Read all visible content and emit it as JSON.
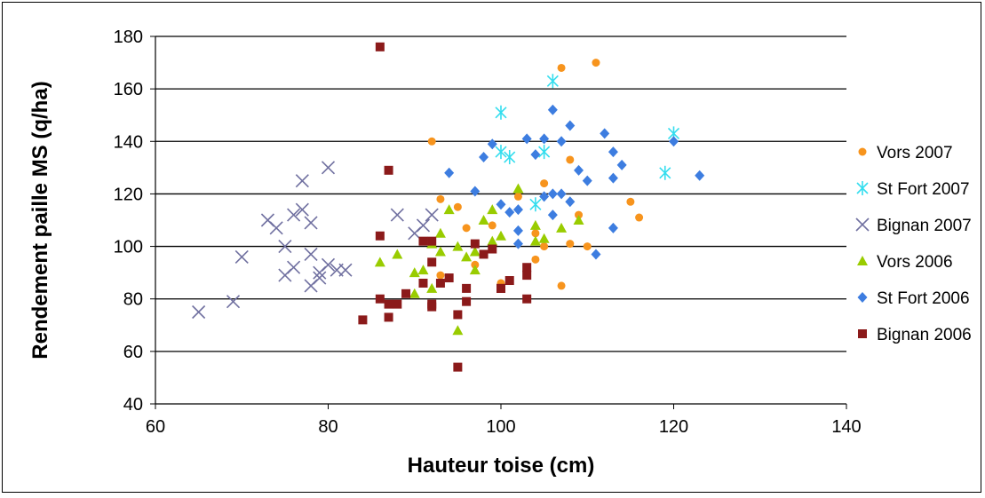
{
  "chart_data": {
    "type": "scatter",
    "title": "",
    "xlabel": "Hauteur toise (cm)",
    "ylabel": "Rendement paille MS (q/ha)",
    "xlim": [
      60,
      140
    ],
    "ylim": [
      40,
      180
    ],
    "xticks": [
      "60",
      "80",
      "100",
      "120",
      "140"
    ],
    "yticks": [
      "40",
      "60",
      "80",
      "100",
      "120",
      "140",
      "160",
      "180"
    ],
    "grid": "horizontal",
    "legend_position": "right",
    "series": [
      {
        "name": "Vors 2007",
        "color": "#f7941d",
        "marker": "circle",
        "points": [
          [
            92,
            140
          ],
          [
            107,
            168
          ],
          [
            111,
            170
          ],
          [
            93,
            118
          ],
          [
            95,
            115
          ],
          [
            96,
            107
          ],
          [
            99,
            108
          ],
          [
            102,
            119
          ],
          [
            105,
            124
          ],
          [
            108,
            133
          ],
          [
            115,
            117
          ],
          [
            116,
            111
          ],
          [
            109,
            112
          ],
          [
            110,
            100
          ],
          [
            108,
            101
          ],
          [
            104,
            105
          ],
          [
            105,
            100
          ],
          [
            104,
            95
          ],
          [
            100,
            86
          ],
          [
            107,
            85
          ],
          [
            97,
            93
          ],
          [
            93,
            89
          ]
        ]
      },
      {
        "name": "St Fort 2007",
        "color": "#33ddee",
        "marker": "asterisk",
        "points": [
          [
            100,
            151
          ],
          [
            106,
            163
          ],
          [
            100,
            136
          ],
          [
            101,
            134
          ],
          [
            105,
            136
          ],
          [
            104,
            116
          ],
          [
            119,
            128
          ],
          [
            120,
            143
          ]
        ]
      },
      {
        "name": "Bignan 2007",
        "color": "#7070a0",
        "marker": "x",
        "points": [
          [
            65,
            75
          ],
          [
            69,
            79
          ],
          [
            70,
            96
          ],
          [
            73,
            110
          ],
          [
            74,
            107
          ],
          [
            75,
            89
          ],
          [
            75,
            100
          ],
          [
            76,
            92
          ],
          [
            76,
            112
          ],
          [
            77,
            114
          ],
          [
            77,
            125
          ],
          [
            78,
            109
          ],
          [
            78,
            97
          ],
          [
            79,
            90
          ],
          [
            78,
            85
          ],
          [
            79,
            88
          ],
          [
            80,
            93
          ],
          [
            80,
            130
          ],
          [
            81,
            91
          ],
          [
            82,
            91
          ],
          [
            88,
            112
          ],
          [
            90,
            105
          ],
          [
            91,
            108
          ],
          [
            92,
            112
          ]
        ]
      },
      {
        "name": "Vors 2006",
        "color": "#99cc00",
        "marker": "triangle",
        "points": [
          [
            86,
            94
          ],
          [
            88,
            97
          ],
          [
            90,
            90
          ],
          [
            90,
            82
          ],
          [
            91,
            91
          ],
          [
            92,
            84
          ],
          [
            92,
            101
          ],
          [
            93,
            98
          ],
          [
            93,
            105
          ],
          [
            94,
            114
          ],
          [
            95,
            100
          ],
          [
            95,
            68
          ],
          [
            96,
            96
          ],
          [
            97,
            98
          ],
          [
            97,
            91
          ],
          [
            98,
            110
          ],
          [
            99,
            114
          ],
          [
            99,
            102
          ],
          [
            100,
            104
          ],
          [
            102,
            122
          ],
          [
            104,
            102
          ],
          [
            104,
            108
          ],
          [
            105,
            103
          ],
          [
            107,
            107
          ],
          [
            109,
            110
          ]
        ]
      },
      {
        "name": "St Fort 2006",
        "color": "#3d7de0",
        "marker": "diamond",
        "points": [
          [
            94,
            128
          ],
          [
            97,
            121
          ],
          [
            98,
            134
          ],
          [
            99,
            139
          ],
          [
            100,
            116
          ],
          [
            101,
            113
          ],
          [
            102,
            114
          ],
          [
            102,
            106
          ],
          [
            102,
            101
          ],
          [
            103,
            141
          ],
          [
            104,
            135
          ],
          [
            105,
            119
          ],
          [
            105,
            141
          ],
          [
            106,
            120
          ],
          [
            106,
            152
          ],
          [
            106,
            112
          ],
          [
            107,
            140
          ],
          [
            107,
            120
          ],
          [
            108,
            146
          ],
          [
            108,
            117
          ],
          [
            109,
            129
          ],
          [
            110,
            125
          ],
          [
            111,
            97
          ],
          [
            112,
            143
          ],
          [
            113,
            107
          ],
          [
            113,
            126
          ],
          [
            113,
            136
          ],
          [
            114,
            131
          ],
          [
            120,
            140
          ],
          [
            123,
            127
          ]
        ]
      },
      {
        "name": "Bignan 2006",
        "color": "#8b1a1a",
        "marker": "square",
        "points": [
          [
            84,
            72
          ],
          [
            86,
            176
          ],
          [
            86,
            104
          ],
          [
            86,
            80
          ],
          [
            87,
            78
          ],
          [
            87,
            129
          ],
          [
            87,
            73
          ],
          [
            88,
            78
          ],
          [
            89,
            82
          ],
          [
            91,
            102
          ],
          [
            91,
            86
          ],
          [
            92,
            102
          ],
          [
            92,
            78
          ],
          [
            92,
            77
          ],
          [
            92,
            94
          ],
          [
            93,
            86
          ],
          [
            94,
            88
          ],
          [
            95,
            74
          ],
          [
            95,
            54
          ],
          [
            96,
            84
          ],
          [
            96,
            79
          ],
          [
            97,
            101
          ],
          [
            98,
            97
          ],
          [
            99,
            99
          ],
          [
            100,
            84
          ],
          [
            100,
            84
          ],
          [
            101,
            87
          ],
          [
            103,
            80
          ],
          [
            103,
            89
          ],
          [
            103,
            92
          ]
        ]
      }
    ]
  }
}
